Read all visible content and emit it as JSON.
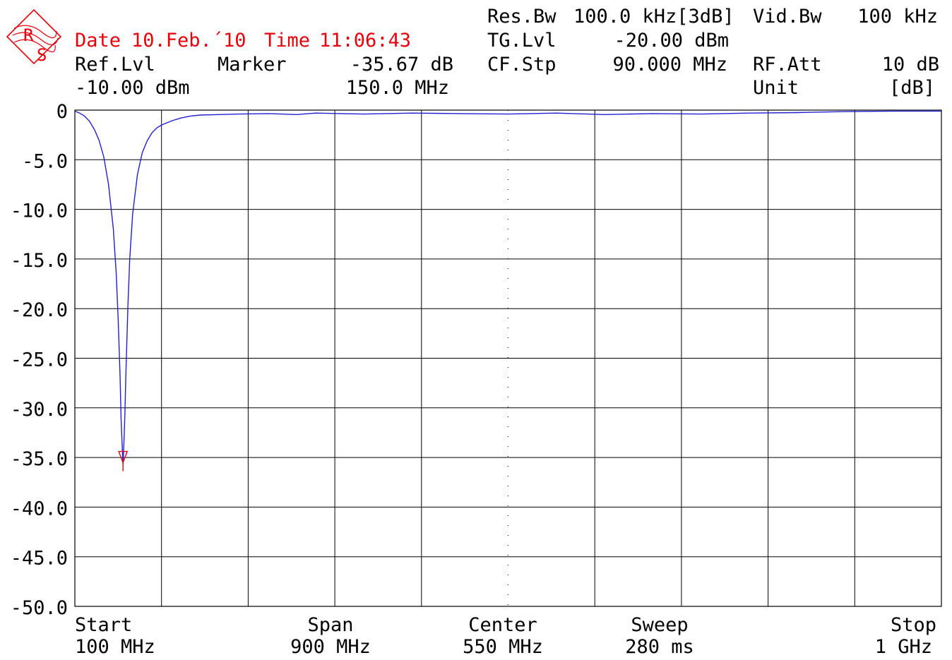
{
  "header": {
    "date_label": "Date",
    "date_value": "10.Feb.´10",
    "time_label": "Time",
    "time_value": "11:06:43",
    "res_bw_label": "Res.Bw",
    "res_bw_value": "100.0 kHz[3dB]",
    "vid_bw_label": "Vid.Bw",
    "vid_bw_value": "100 kHz",
    "tg_lvl_label": "TG.Lvl",
    "tg_lvl_value": "-20.00 dBm",
    "ref_lvl_label": "Ref.Lvl",
    "ref_lvl_value": "-10.00 dBm",
    "marker_label": "Marker",
    "marker_level": "-35.67 dB",
    "marker_freq": "150.0 MHz",
    "cf_stp_label": "CF.Stp",
    "cf_stp_value": "90.000 MHz",
    "rf_att_label": "RF.Att",
    "rf_att_value": "10 dB",
    "unit_label": "Unit",
    "unit_value": "[dB]"
  },
  "footer": {
    "start_label": "Start",
    "start_value": "100 MHz",
    "span_label": "Span",
    "span_value": "900 MHz",
    "center_label": "Center",
    "center_value": "550 MHz",
    "sweep_label": "Sweep",
    "sweep_value": "280 ms",
    "stop_label": "Stop",
    "stop_value": "1 GHz"
  },
  "logo": {
    "text_top": "R",
    "text_bottom": "S",
    "color": "#e8000b"
  },
  "colors": {
    "trace": "#2020d0",
    "marker": "#e8000b",
    "grid": "#000000",
    "header_red": "#e8000b"
  },
  "chart_data": {
    "type": "line",
    "title": "",
    "xlabel": "",
    "ylabel": "",
    "xlim": [
      100,
      1000
    ],
    "ylim": [
      -50,
      0
    ],
    "grid": true,
    "y_ticks": [
      "0",
      "-5.0",
      "-10.0",
      "-15.0",
      "-20.0",
      "-25.0",
      "-30.0",
      "-35.0",
      "-40.0",
      "-45.0",
      "-50.0"
    ],
    "x_divisions": 10,
    "series": [
      {
        "x": [
          100,
          105,
          110,
          115,
          120,
          125,
          130,
          135,
          140,
          143,
          145,
          147,
          148,
          149,
          150,
          151,
          152,
          153,
          155,
          157,
          160,
          165,
          170,
          175,
          180,
          185,
          190,
          200,
          210,
          220,
          230,
          250,
          270,
          300,
          330,
          350,
          400,
          450,
          500,
          550,
          600,
          650,
          700,
          750,
          800,
          850,
          900,
          950,
          1000
        ],
        "y": [
          -0.1,
          -0.3,
          -0.6,
          -1.1,
          -1.9,
          -3.0,
          -4.7,
          -7.5,
          -12.0,
          -16.5,
          -21.0,
          -27.0,
          -31.0,
          -33.5,
          -35.67,
          -33.5,
          -30.5,
          -26.5,
          -20.0,
          -15.0,
          -10.5,
          -6.5,
          -4.3,
          -3.1,
          -2.3,
          -1.8,
          -1.5,
          -1.1,
          -0.8,
          -0.6,
          -0.5,
          -0.45,
          -0.4,
          -0.35,
          -0.45,
          -0.3,
          -0.4,
          -0.3,
          -0.35,
          -0.4,
          -0.3,
          -0.45,
          -0.35,
          -0.4,
          -0.3,
          -0.25,
          -0.15,
          -0.1,
          -0.1
        ]
      }
    ],
    "marker": {
      "x": 150,
      "y": -35.67
    }
  }
}
